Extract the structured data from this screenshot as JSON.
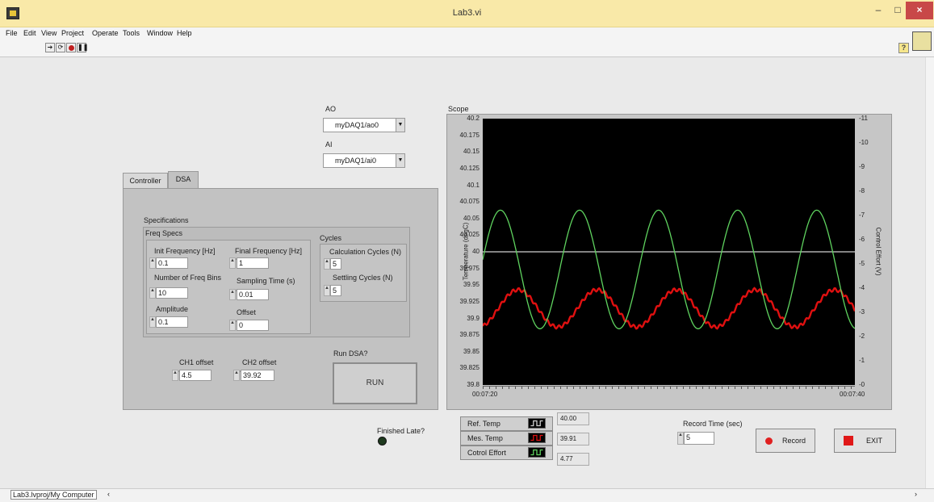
{
  "window": {
    "title": "Lab3.vi",
    "minimize": "–",
    "maximize": "□",
    "close": "×"
  },
  "menu": [
    "File",
    "Edit",
    "View",
    "Project",
    "Operate",
    "Tools",
    "Window",
    "Help"
  ],
  "toolbar": {
    "run_icon": "run-arrow-icon",
    "run_continuous_icon": "run-continuously-icon",
    "abort_icon": "abort-icon",
    "pause_icon": "pause-icon",
    "help_glyph": "?"
  },
  "ao": {
    "label": "AO",
    "value": "myDAQ1/ao0"
  },
  "ai": {
    "label": "AI",
    "value": "myDAQ1/ai0"
  },
  "tabs": {
    "controller": "Controller",
    "dsa": "DSA",
    "active": "DSA"
  },
  "dsa": {
    "specifications_label": "Specifications",
    "freq_specs_label": "Freq Specs",
    "cycles_label": "Cycles",
    "init_freq": {
      "label": "Init Frequency [Hz]",
      "value": "0.1"
    },
    "final_freq": {
      "label": "Final Frequency [Hz]",
      "value": "1"
    },
    "num_bins": {
      "label": "Number of Freq Bins",
      "value": "10"
    },
    "sampling_time": {
      "label": "Sampling Time (s)",
      "value": "0.01"
    },
    "amplitude": {
      "label": "Amplitude",
      "value": "0.1"
    },
    "offset": {
      "label": "Offset",
      "value": "0"
    },
    "calc_cycles": {
      "label": "Calculation Cycles (N)",
      "value": "5"
    },
    "settling_cycles": {
      "label": "Settling Cycles (N)",
      "value": "5"
    },
    "ch1_offset": {
      "label": "CH1 offset",
      "value": "4.5"
    },
    "ch2_offset": {
      "label": "CH2 offset",
      "value": "39.92"
    },
    "run_label": "Run DSA?",
    "run_button": "RUN",
    "finished_late_label": "Finished Late?"
  },
  "scope": {
    "label": "Scope",
    "left_axis_label": "Temperature (degC)",
    "right_axis_label": "Control Effort (V)",
    "left_ticks": [
      "40.2",
      "40.175",
      "40.15",
      "40.125",
      "40.1",
      "40.075",
      "40.05",
      "40.025",
      "40",
      "39.975",
      "39.95",
      "39.925",
      "39.9",
      "39.875",
      "39.85",
      "39.825",
      "39.8"
    ],
    "right_ticks": [
      "11",
      "10",
      "9",
      "8",
      "7",
      "6",
      "5",
      "4",
      "3",
      "2",
      "1",
      "0"
    ],
    "x_start": "00:07:20",
    "x_end": "00:07:40"
  },
  "chart_data": {
    "type": "line",
    "title": "Scope",
    "xlabel": "",
    "ylabel": "Temperature (degC)",
    "y2label": "Control Effort (V)",
    "xlim": [
      "00:07:20",
      "00:07:40"
    ],
    "ylim": [
      39.8,
      40.2
    ],
    "y2lim": [
      0,
      11
    ],
    "grid": false,
    "legend": "bottom",
    "series": [
      {
        "name": "Ref. Temp",
        "color": "#d0d0d0",
        "axis": "left",
        "shape": "constant",
        "value": 40.0
      },
      {
        "name": "Mes. Temp",
        "color": "#e01010",
        "axis": "left",
        "shape": "sine",
        "mean": 39.915,
        "amplitude": 0.028,
        "period_s": 4.25,
        "first_peak_s": 1.9
      },
      {
        "name": "Cotrol Effort",
        "color": "#5fd35f",
        "axis": "right",
        "shape": "sine",
        "mean": 4.77,
        "amplitude": 2.45,
        "period_s": 4.25,
        "first_peak_s": 0.95
      }
    ]
  },
  "legend": [
    {
      "name": "Ref. Temp",
      "value": "40.00",
      "color": "#d0d0d0"
    },
    {
      "name": "Mes. Temp",
      "value": "39.91",
      "color": "#e01010"
    },
    {
      "name": "Cotrol Effort",
      "value": "4.77",
      "color": "#5fd35f"
    }
  ],
  "record_time": {
    "label": "Record Time (sec)",
    "value": "5"
  },
  "buttons": {
    "record": "Record",
    "exit": "EXIT"
  },
  "status": {
    "path": "Lab3.lvproj/My Computer"
  }
}
